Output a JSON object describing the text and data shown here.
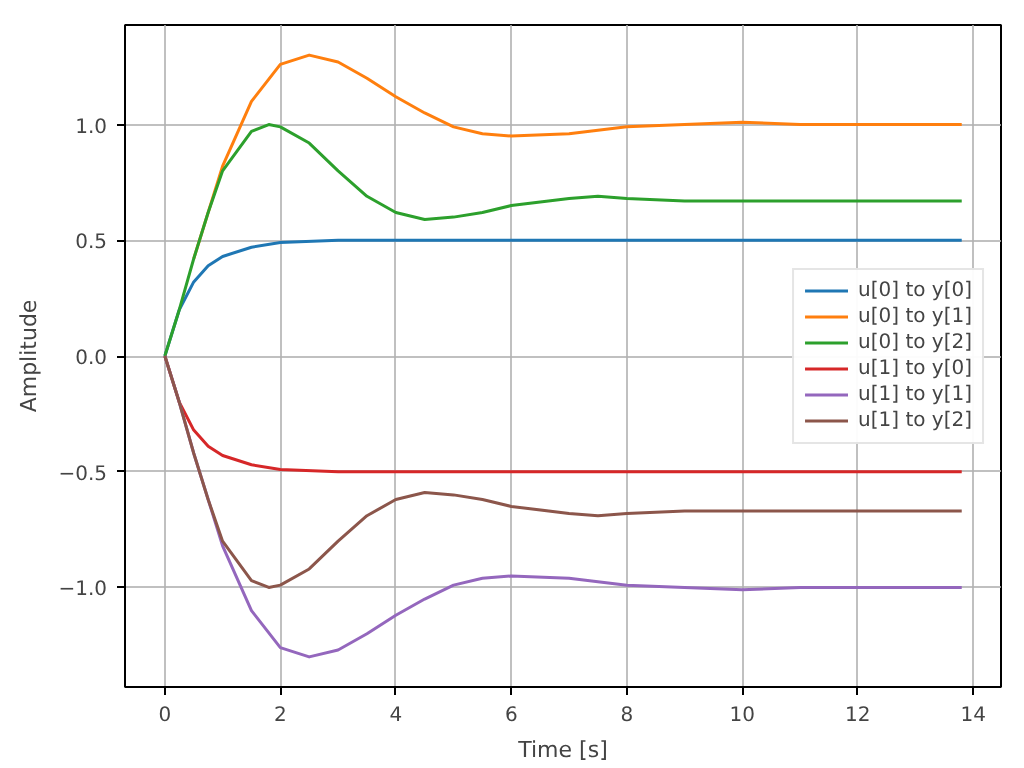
{
  "chart_data": {
    "type": "line",
    "xlabel": "Time [s]",
    "ylabel": "Amplitude",
    "xlim": [
      -0.69,
      14.48
    ],
    "ylim": [
      -1.43,
      1.43
    ],
    "xticks": [
      0,
      2,
      4,
      6,
      8,
      10,
      12,
      14
    ],
    "yticks": [
      {
        "value": -1.0,
        "label": "−1.0"
      },
      {
        "value": -0.5,
        "label": "−0.5"
      },
      {
        "value": 0.0,
        "label": "0.0"
      },
      {
        "value": 0.5,
        "label": "0.5"
      },
      {
        "value": 1.0,
        "label": "1.0"
      }
    ],
    "grid": true,
    "legend": "right",
    "line_style": "solid",
    "marker": "none",
    "series": [
      {
        "name": "u[0] to y[0]",
        "color": "#1f77b4",
        "x": [
          0,
          0.25,
          0.5,
          0.75,
          1,
          1.5,
          2,
          3,
          4,
          6,
          8,
          10,
          12,
          13.8
        ],
        "values": [
          0,
          0.2,
          0.32,
          0.39,
          0.43,
          0.47,
          0.49,
          0.5,
          0.5,
          0.5,
          0.5,
          0.5,
          0.5,
          0.5
        ]
      },
      {
        "name": "u[0] to y[1]",
        "color": "#ff7f0e",
        "x": [
          0.5,
          0.75,
          1,
          1.5,
          2,
          2.5,
          3,
          3.5,
          4,
          4.5,
          5,
          5.5,
          6,
          7,
          8,
          9,
          10,
          11,
          12,
          13.8
        ],
        "values": [
          0.42,
          0.62,
          0.82,
          1.1,
          1.26,
          1.3,
          1.27,
          1.2,
          1.12,
          1.05,
          0.99,
          0.96,
          0.95,
          0.96,
          0.99,
          1.0,
          1.01,
          1.0,
          1.0,
          1.0
        ]
      },
      {
        "name": "u[0] to y[2]",
        "color": "#2ca02c",
        "x": [
          0,
          0.25,
          0.5,
          0.75,
          1,
          1.5,
          1.8,
          2,
          2.5,
          3,
          3.5,
          4,
          4.5,
          5,
          5.5,
          6,
          7,
          7.5,
          8,
          9,
          10,
          11,
          12,
          13.8
        ],
        "values": [
          0,
          0.2,
          0.42,
          0.62,
          0.8,
          0.97,
          1.0,
          0.99,
          0.92,
          0.8,
          0.69,
          0.62,
          0.59,
          0.6,
          0.62,
          0.65,
          0.68,
          0.69,
          0.68,
          0.67,
          0.67,
          0.67,
          0.67,
          0.67
        ]
      },
      {
        "name": "u[1] to y[0]",
        "color": "#d62728",
        "x": [
          0,
          0.25,
          0.5,
          0.75,
          1,
          1.5,
          2,
          3,
          4,
          6,
          8,
          10,
          12,
          13.8
        ],
        "values": [
          0,
          -0.2,
          -0.32,
          -0.39,
          -0.43,
          -0.47,
          -0.49,
          -0.5,
          -0.5,
          -0.5,
          -0.5,
          -0.5,
          -0.5,
          -0.5
        ]
      },
      {
        "name": "u[1] to y[1]",
        "color": "#9467bd",
        "x": [
          0,
          0.25,
          0.5,
          0.75,
          1,
          1.5,
          2,
          2.5,
          3,
          3.5,
          4,
          4.5,
          5,
          5.5,
          6,
          7,
          8,
          9,
          10,
          11,
          12,
          13.8
        ],
        "values": [
          0,
          -0.2,
          -0.42,
          -0.62,
          -0.82,
          -1.1,
          -1.26,
          -1.3,
          -1.27,
          -1.2,
          -1.12,
          -1.05,
          -0.99,
          -0.96,
          -0.95,
          -0.96,
          -0.99,
          -1.0,
          -1.01,
          -1.0,
          -1.0,
          -1.0
        ]
      },
      {
        "name": "u[1] to y[2]",
        "color": "#8c564b",
        "x": [
          0,
          0.25,
          0.5,
          0.75,
          1,
          1.5,
          1.8,
          2,
          2.5,
          3,
          3.5,
          4,
          4.5,
          5,
          5.5,
          6,
          7,
          7.5,
          8,
          9,
          10,
          11,
          12,
          13.8
        ],
        "values": [
          0,
          -0.2,
          -0.42,
          -0.62,
          -0.8,
          -0.97,
          -1.0,
          -0.99,
          -0.92,
          -0.8,
          -0.69,
          -0.62,
          -0.59,
          -0.6,
          -0.62,
          -0.65,
          -0.68,
          -0.69,
          -0.68,
          -0.67,
          -0.67,
          -0.67,
          -0.67,
          -0.67
        ]
      }
    ]
  }
}
